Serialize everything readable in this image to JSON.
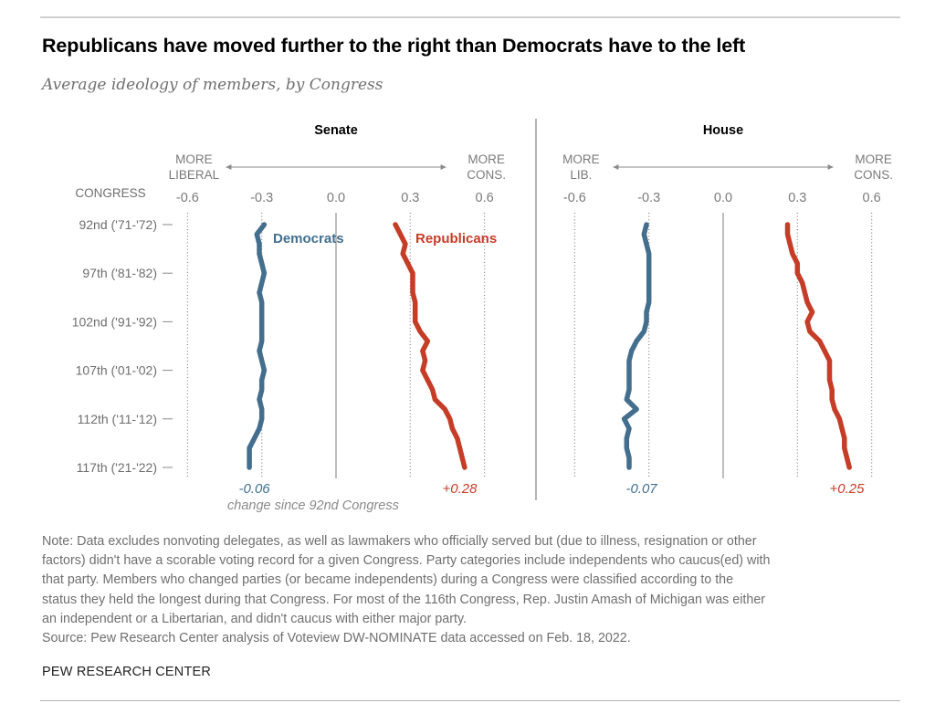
{
  "title": "Republicans have moved further to the right than Democrats have to the left",
  "subtitle": "Average ideology of members, by Congress",
  "colors": {
    "democrat": "#436e8d",
    "republican": "#c53d27",
    "axis_text": "#7a7a7a",
    "divider": "#7a7a7a"
  },
  "chart_data": {
    "type": "line",
    "title": "Republicans have moved further to the right than Democrats have to the left",
    "subtitle": "Average ideology of members, by Congress",
    "y_axis_label": "CONGRESS",
    "y_categories": [
      "92nd ('71-'72)",
      "97th ('81-'82)",
      "102nd ('91-'92)",
      "107th ('01-'02)",
      "112th ('11-'12)",
      "117th ('21-'22)"
    ],
    "y_category_congress": [
      92,
      97,
      102,
      107,
      112,
      117
    ],
    "congress": [
      92,
      93,
      94,
      95,
      96,
      97,
      98,
      99,
      100,
      101,
      102,
      103,
      104,
      105,
      106,
      107,
      108,
      109,
      110,
      111,
      112,
      113,
      114,
      115,
      116,
      117
    ],
    "x_ticks": [
      -0.6,
      -0.3,
      0.0,
      0.3,
      0.6
    ],
    "x_tick_labels": [
      "-0.6",
      "-0.3",
      "0.0",
      "0.3",
      "0.6"
    ],
    "xlim": [
      -0.6,
      0.6
    ],
    "grid": "dotted vertical at ±0.3 and ±0.6, solid at 0.0",
    "change_caption": "change since 92nd Congress",
    "panels": [
      {
        "name": "Senate",
        "left_label": [
          "MORE",
          "LIBERAL"
        ],
        "right_label": [
          "MORE",
          "CONS."
        ],
        "series": [
          {
            "name": "Democrats",
            "color": "#436e8d",
            "values": [
              -0.29,
              -0.32,
              -0.31,
              -0.31,
              -0.3,
              -0.29,
              -0.3,
              -0.31,
              -0.3,
              -0.3,
              -0.3,
              -0.3,
              -0.3,
              -0.31,
              -0.3,
              -0.29,
              -0.3,
              -0.3,
              -0.31,
              -0.3,
              -0.3,
              -0.31,
              -0.33,
              -0.35,
              -0.35,
              -0.35
            ],
            "change_label": "-0.06"
          },
          {
            "name": "Republicans",
            "color": "#c53d27",
            "values": [
              0.24,
              0.26,
              0.28,
              0.27,
              0.29,
              0.31,
              0.31,
              0.31,
              0.32,
              0.32,
              0.32,
              0.34,
              0.37,
              0.35,
              0.36,
              0.35,
              0.37,
              0.39,
              0.4,
              0.44,
              0.46,
              0.47,
              0.49,
              0.5,
              0.51,
              0.52
            ],
            "change_label": "+0.28"
          }
        ]
      },
      {
        "name": "House",
        "left_label": [
          "MORE",
          "LIB."
        ],
        "right_label": [
          "MORE",
          "CONS."
        ],
        "series": [
          {
            "name": "Democrats",
            "color": "#436e8d",
            "values": [
              -0.31,
              -0.32,
              -0.31,
              -0.3,
              -0.3,
              -0.3,
              -0.3,
              -0.3,
              -0.3,
              -0.31,
              -0.31,
              -0.32,
              -0.35,
              -0.37,
              -0.38,
              -0.38,
              -0.38,
              -0.38,
              -0.39,
              -0.35,
              -0.4,
              -0.38,
              -0.39,
              -0.39,
              -0.38,
              -0.38
            ],
            "change_label": "-0.07"
          },
          {
            "name": "Republicans",
            "color": "#c53d27",
            "values": [
              0.26,
              0.26,
              0.27,
              0.28,
              0.3,
              0.3,
              0.32,
              0.33,
              0.34,
              0.36,
              0.34,
              0.35,
              0.39,
              0.41,
              0.43,
              0.43,
              0.43,
              0.44,
              0.44,
              0.45,
              0.47,
              0.48,
              0.49,
              0.49,
              0.5,
              0.51
            ],
            "change_label": "+0.25"
          }
        ]
      }
    ]
  },
  "notes": [
    "Note: Data excludes nonvoting delegates, as well as lawmakers who officially served but (due to illness, resignation or other",
    "factors) didn't have a scorable voting record for a given Congress. Party categories include independents who caucus(ed) with",
    "that party. Members who changed parties (or became independents) during a Congress were classified according to the",
    "status they held the longest during that Congress. For most of the 116th Congress, Rep. Justin Amash of Michigan was either",
    "an independent or a Libertarian, and didn't caucus with either major party.",
    "Source: Pew Research Center analysis of Voteview DW-NOMINATE data accessed on Feb. 18, 2022."
  ],
  "brand": "PEW RESEARCH CENTER"
}
